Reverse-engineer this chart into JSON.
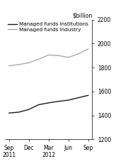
{
  "title": "",
  "ylabel": "$billion",
  "x_labels": [
    "Sep\n2011",
    "Dec",
    "Mar\n2012",
    "Jun",
    "Sep"
  ],
  "x_positions": [
    0,
    1,
    2,
    3,
    4
  ],
  "x_fine": [
    0,
    0.5,
    1,
    1.5,
    2,
    2.5,
    3,
    3.5,
    4
  ],
  "institutions_fine": [
    1420,
    1428,
    1450,
    1490,
    1505,
    1518,
    1528,
    1548,
    1568
  ],
  "industry_fine": [
    1815,
    1825,
    1840,
    1870,
    1905,
    1900,
    1885,
    1915,
    1955
  ],
  "ylim": [
    1200,
    2200
  ],
  "yticks": [
    1200,
    1400,
    1600,
    1800,
    2000,
    2200
  ],
  "institutions_color": "#1a1a1a",
  "industry_color": "#aaaaaa",
  "legend_institutions": "Managed funds institutions",
  "legend_industry": "Managed funds industry",
  "line_width": 1.0,
  "font_size": 5.5,
  "legend_font_size": 5.2
}
